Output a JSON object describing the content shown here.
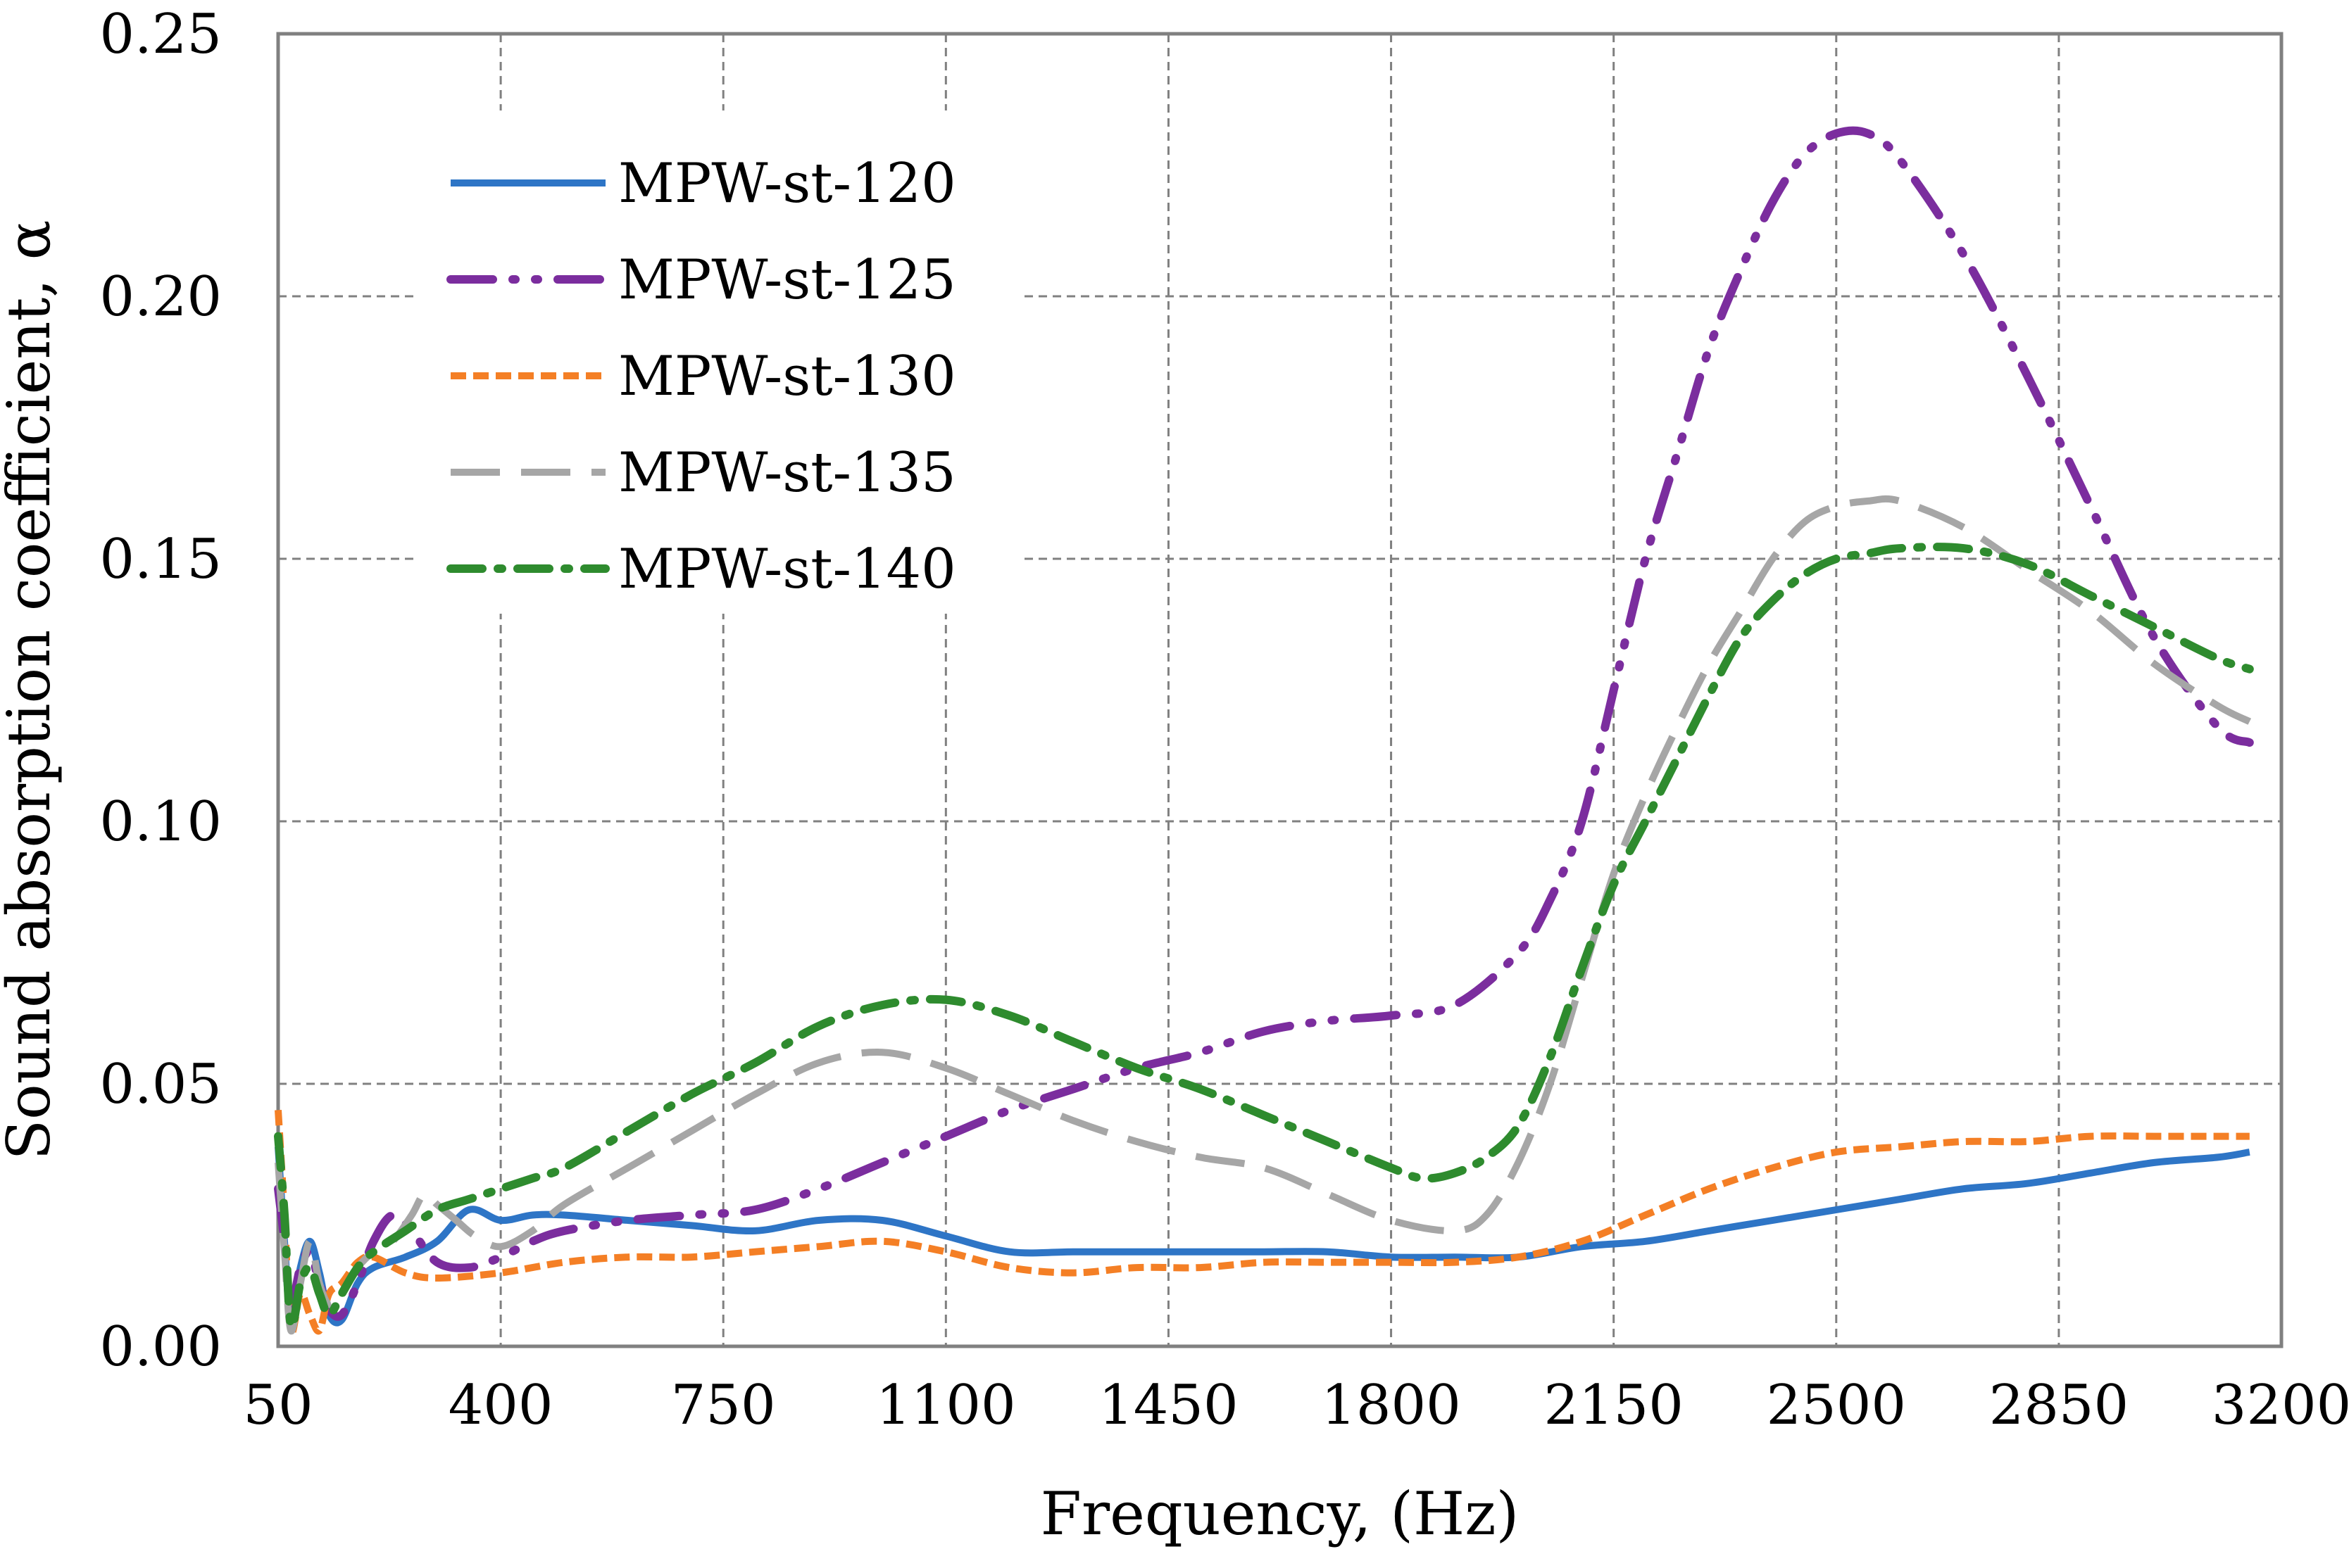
{
  "chart_data": {
    "type": "line",
    "title": "",
    "xlabel": "Frequency, (Hz)",
    "ylabel": "Sound absorption coefficient, α",
    "xlim": [
      50,
      3200
    ],
    "ylim": [
      0,
      0.25
    ],
    "xticks": [
      50,
      400,
      750,
      1100,
      1450,
      1800,
      2150,
      2500,
      2850,
      3200
    ],
    "yticks": [
      0,
      0.05,
      0.1,
      0.15,
      0.2,
      0.25
    ],
    "xtick_labels": [
      "50",
      "400",
      "750",
      "1100",
      "1450",
      "1800",
      "2150",
      "2500",
      "2850",
      "3200"
    ],
    "ytick_labels": [
      "0.00",
      "0.05",
      "0.10",
      "0.15",
      "0.20",
      "0.25"
    ],
    "grid": true,
    "legend_position": "top-left",
    "series": [
      {
        "name": "MPW-st-120",
        "color": "#2E75C6",
        "style": "solid",
        "points": [
          [
            50,
            0.038
          ],
          [
            60,
            0.02
          ],
          [
            70,
            0.005
          ],
          [
            85,
            0.015
          ],
          [
            100,
            0.02
          ],
          [
            115,
            0.014
          ],
          [
            130,
            0.006
          ],
          [
            150,
            0.005
          ],
          [
            175,
            0.012
          ],
          [
            200,
            0.015
          ],
          [
            250,
            0.017
          ],
          [
            300,
            0.02
          ],
          [
            350,
            0.026
          ],
          [
            400,
            0.024
          ],
          [
            450,
            0.025
          ],
          [
            500,
            0.025
          ],
          [
            600,
            0.024
          ],
          [
            700,
            0.023
          ],
          [
            800,
            0.022
          ],
          [
            900,
            0.024
          ],
          [
            1000,
            0.024
          ],
          [
            1100,
            0.021
          ],
          [
            1200,
            0.018
          ],
          [
            1300,
            0.018
          ],
          [
            1400,
            0.018
          ],
          [
            1500,
            0.018
          ],
          [
            1600,
            0.018
          ],
          [
            1700,
            0.018
          ],
          [
            1800,
            0.017
          ],
          [
            1900,
            0.017
          ],
          [
            2000,
            0.017
          ],
          [
            2100,
            0.019
          ],
          [
            2200,
            0.02
          ],
          [
            2300,
            0.022
          ],
          [
            2400,
            0.024
          ],
          [
            2500,
            0.026
          ],
          [
            2600,
            0.028
          ],
          [
            2700,
            0.03
          ],
          [
            2800,
            0.031
          ],
          [
            2900,
            0.033
          ],
          [
            3000,
            0.035
          ],
          [
            3100,
            0.036
          ],
          [
            3150,
            0.037
          ]
        ]
      },
      {
        "name": "MPW-st-125",
        "color": "#7B2D9E",
        "style": "dash-dot-dot",
        "points": [
          [
            50,
            0.03
          ],
          [
            60,
            0.02
          ],
          [
            70,
            0.008
          ],
          [
            85,
            0.015
          ],
          [
            100,
            0.018
          ],
          [
            115,
            0.012
          ],
          [
            130,
            0.007
          ],
          [
            150,
            0.006
          ],
          [
            175,
            0.012
          ],
          [
            200,
            0.02
          ],
          [
            230,
            0.025
          ],
          [
            260,
            0.022
          ],
          [
            300,
            0.016
          ],
          [
            350,
            0.015
          ],
          [
            400,
            0.017
          ],
          [
            450,
            0.02
          ],
          [
            500,
            0.022
          ],
          [
            600,
            0.024
          ],
          [
            700,
            0.025
          ],
          [
            800,
            0.026
          ],
          [
            900,
            0.03
          ],
          [
            1000,
            0.035
          ],
          [
            1100,
            0.04
          ],
          [
            1200,
            0.045
          ],
          [
            1300,
            0.049
          ],
          [
            1400,
            0.053
          ],
          [
            1500,
            0.056
          ],
          [
            1600,
            0.06
          ],
          [
            1700,
            0.062
          ],
          [
            1800,
            0.063
          ],
          [
            1900,
            0.065
          ],
          [
            2000,
            0.075
          ],
          [
            2050,
            0.085
          ],
          [
            2100,
            0.1
          ],
          [
            2150,
            0.125
          ],
          [
            2200,
            0.15
          ],
          [
            2250,
            0.17
          ],
          [
            2300,
            0.19
          ],
          [
            2350,
            0.205
          ],
          [
            2400,
            0.218
          ],
          [
            2450,
            0.227
          ],
          [
            2500,
            0.231
          ],
          [
            2550,
            0.231
          ],
          [
            2600,
            0.226
          ],
          [
            2700,
            0.208
          ],
          [
            2800,
            0.185
          ],
          [
            2900,
            0.16
          ],
          [
            3000,
            0.135
          ],
          [
            3100,
            0.118
          ],
          [
            3150,
            0.115
          ]
        ]
      },
      {
        "name": "MPW-st-130",
        "color": "#F47F25",
        "style": "dashed-short",
        "points": [
          [
            50,
            0.045
          ],
          [
            60,
            0.025
          ],
          [
            70,
            0.003
          ],
          [
            85,
            0.01
          ],
          [
            100,
            0.006
          ],
          [
            115,
            0.003
          ],
          [
            130,
            0.01
          ],
          [
            150,
            0.012
          ],
          [
            175,
            0.016
          ],
          [
            200,
            0.017
          ],
          [
            250,
            0.014
          ],
          [
            300,
            0.013
          ],
          [
            400,
            0.014
          ],
          [
            500,
            0.016
          ],
          [
            600,
            0.017
          ],
          [
            700,
            0.017
          ],
          [
            800,
            0.018
          ],
          [
            900,
            0.019
          ],
          [
            1000,
            0.02
          ],
          [
            1100,
            0.018
          ],
          [
            1200,
            0.015
          ],
          [
            1300,
            0.014
          ],
          [
            1400,
            0.015
          ],
          [
            1500,
            0.015
          ],
          [
            1600,
            0.016
          ],
          [
            1700,
            0.016
          ],
          [
            1800,
            0.016
          ],
          [
            1900,
            0.016
          ],
          [
            2000,
            0.017
          ],
          [
            2100,
            0.02
          ],
          [
            2200,
            0.025
          ],
          [
            2300,
            0.03
          ],
          [
            2400,
            0.034
          ],
          [
            2500,
            0.037
          ],
          [
            2600,
            0.038
          ],
          [
            2700,
            0.039
          ],
          [
            2800,
            0.039
          ],
          [
            2900,
            0.04
          ],
          [
            3000,
            0.04
          ],
          [
            3100,
            0.04
          ],
          [
            3150,
            0.04
          ]
        ]
      },
      {
        "name": "MPW-st-135",
        "color": "#A6A6A6",
        "style": "dashed-long",
        "points": [
          [
            50,
            0.035
          ],
          [
            60,
            0.018
          ],
          [
            70,
            0.003
          ],
          [
            85,
            0.012
          ],
          [
            100,
            0.02
          ],
          [
            115,
            0.012
          ],
          [
            130,
            0.008
          ],
          [
            150,
            0.01
          ],
          [
            175,
            0.015
          ],
          [
            200,
            0.018
          ],
          [
            230,
            0.02
          ],
          [
            260,
            0.025
          ],
          [
            280,
            0.029
          ],
          [
            300,
            0.027
          ],
          [
            330,
            0.024
          ],
          [
            360,
            0.021
          ],
          [
            400,
            0.019
          ],
          [
            450,
            0.022
          ],
          [
            500,
            0.027
          ],
          [
            600,
            0.034
          ],
          [
            700,
            0.041
          ],
          [
            800,
            0.048
          ],
          [
            900,
            0.054
          ],
          [
            1000,
            0.056
          ],
          [
            1100,
            0.053
          ],
          [
            1200,
            0.048
          ],
          [
            1300,
            0.043
          ],
          [
            1400,
            0.039
          ],
          [
            1500,
            0.036
          ],
          [
            1600,
            0.034
          ],
          [
            1700,
            0.029
          ],
          [
            1800,
            0.024
          ],
          [
            1900,
            0.022
          ],
          [
            1950,
            0.025
          ],
          [
            2000,
            0.035
          ],
          [
            2050,
            0.05
          ],
          [
            2100,
            0.07
          ],
          [
            2150,
            0.09
          ],
          [
            2200,
            0.105
          ],
          [
            2250,
            0.118
          ],
          [
            2300,
            0.13
          ],
          [
            2350,
            0.14
          ],
          [
            2400,
            0.15
          ],
          [
            2450,
            0.157
          ],
          [
            2500,
            0.16
          ],
          [
            2550,
            0.161
          ],
          [
            2600,
            0.161
          ],
          [
            2700,
            0.156
          ],
          [
            2800,
            0.148
          ],
          [
            2900,
            0.14
          ],
          [
            3000,
            0.13
          ],
          [
            3100,
            0.122
          ],
          [
            3150,
            0.119
          ]
        ]
      },
      {
        "name": "MPW-st-140",
        "color": "#2E8B2E",
        "style": "dash-dot",
        "points": [
          [
            50,
            0.04
          ],
          [
            60,
            0.025
          ],
          [
            70,
            0.004
          ],
          [
            85,
            0.012
          ],
          [
            100,
            0.015
          ],
          [
            115,
            0.01
          ],
          [
            130,
            0.006
          ],
          [
            150,
            0.01
          ],
          [
            175,
            0.015
          ],
          [
            200,
            0.018
          ],
          [
            250,
            0.022
          ],
          [
            300,
            0.026
          ],
          [
            350,
            0.028
          ],
          [
            400,
            0.03
          ],
          [
            450,
            0.032
          ],
          [
            500,
            0.034
          ],
          [
            600,
            0.041
          ],
          [
            700,
            0.048
          ],
          [
            800,
            0.054
          ],
          [
            900,
            0.061
          ],
          [
            1000,
            0.065
          ],
          [
            1100,
            0.066
          ],
          [
            1200,
            0.063
          ],
          [
            1300,
            0.058
          ],
          [
            1400,
            0.053
          ],
          [
            1500,
            0.049
          ],
          [
            1600,
            0.044
          ],
          [
            1700,
            0.039
          ],
          [
            1800,
            0.034
          ],
          [
            1850,
            0.032
          ],
          [
            1900,
            0.033
          ],
          [
            1950,
            0.036
          ],
          [
            2000,
            0.042
          ],
          [
            2050,
            0.055
          ],
          [
            2100,
            0.072
          ],
          [
            2150,
            0.088
          ],
          [
            2200,
            0.1
          ],
          [
            2250,
            0.112
          ],
          [
            2300,
            0.124
          ],
          [
            2350,
            0.135
          ],
          [
            2400,
            0.142
          ],
          [
            2450,
            0.147
          ],
          [
            2500,
            0.15
          ],
          [
            2550,
            0.151
          ],
          [
            2600,
            0.152
          ],
          [
            2700,
            0.152
          ],
          [
            2800,
            0.149
          ],
          [
            2900,
            0.143
          ],
          [
            3000,
            0.137
          ],
          [
            3100,
            0.131
          ],
          [
            3150,
            0.129
          ]
        ]
      }
    ]
  }
}
